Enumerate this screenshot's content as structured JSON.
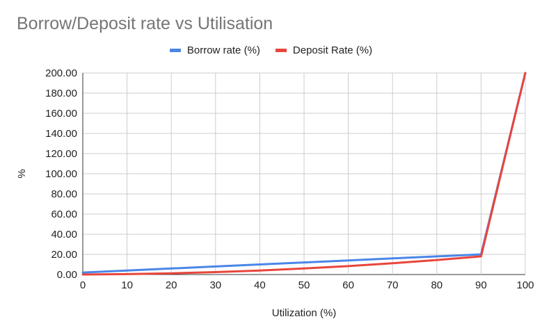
{
  "chart_data": {
    "type": "line",
    "title": "Borrow/Deposit rate vs Utilisation",
    "xlabel": "Utilization (%)",
    "ylabel": "%",
    "x": [
      0,
      10,
      20,
      30,
      40,
      50,
      60,
      70,
      80,
      90,
      100
    ],
    "xlim": [
      0,
      100
    ],
    "ylim": [
      0,
      200
    ],
    "x_ticks": [
      "0",
      "10",
      "20",
      "30",
      "40",
      "50",
      "60",
      "70",
      "80",
      "90",
      "100"
    ],
    "y_ticks": [
      "0.00",
      "20.00",
      "40.00",
      "60.00",
      "80.00",
      "100.00",
      "120.00",
      "140.00",
      "160.00",
      "180.00",
      "200.00"
    ],
    "grid": true,
    "legend_position": "top",
    "series": [
      {
        "name": "Borrow rate (%)",
        "color": "#4a86e8",
        "values": [
          2,
          4,
          6,
          8,
          10,
          12,
          14,
          16,
          18,
          20,
          200
        ]
      },
      {
        "name": "Deposit Rate (%)",
        "color": "#e8453c",
        "values": [
          0,
          0.4,
          1.2,
          2.4,
          4,
          6,
          8.4,
          11.2,
          14.4,
          18,
          200
        ]
      }
    ]
  }
}
